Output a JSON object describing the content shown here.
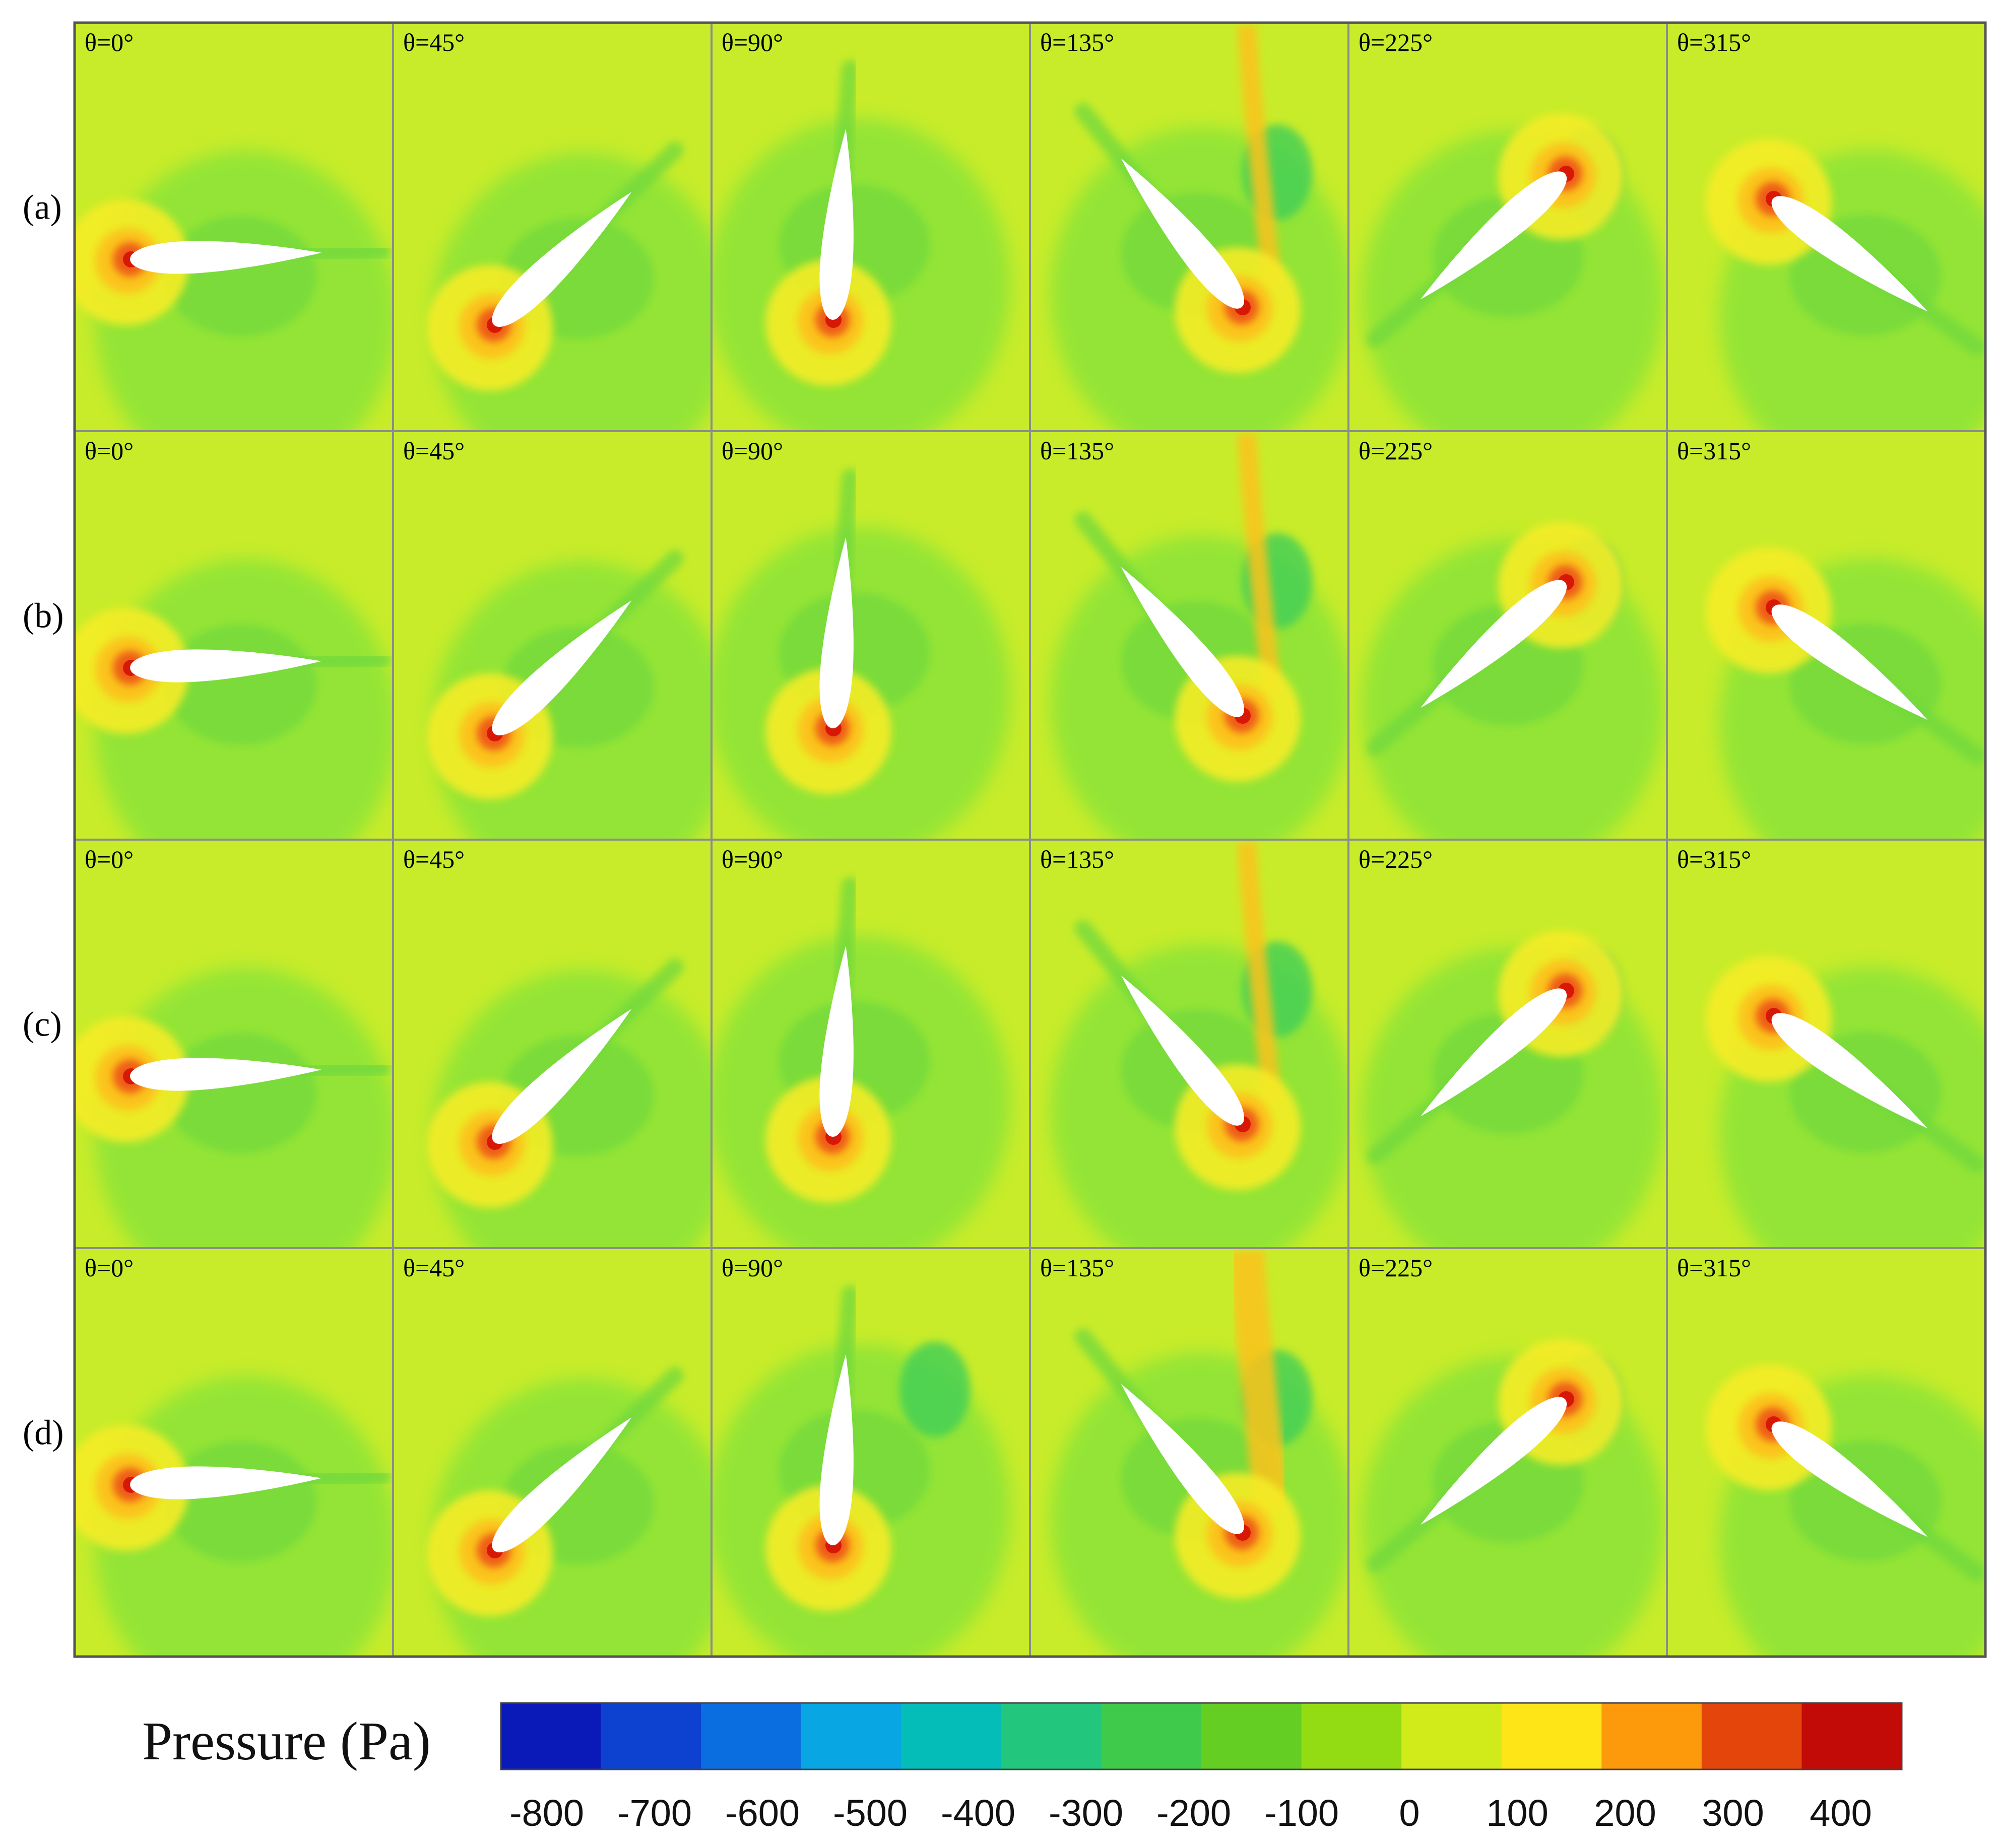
{
  "figure": {
    "rows": [
      {
        "label": "(a)"
      },
      {
        "label": "(b)"
      },
      {
        "label": "(c)"
      },
      {
        "label": "(d)"
      }
    ],
    "angles": [
      {
        "text": "θ=0°",
        "deg": 0
      },
      {
        "text": "θ=45°",
        "deg": 45
      },
      {
        "text": "θ=90°",
        "deg": 90
      },
      {
        "text": "θ=135°",
        "deg": 135
      },
      {
        "text": "θ=225°",
        "deg": 225
      },
      {
        "text": "θ=315°",
        "deg": 315
      }
    ],
    "colors": {
      "background": "#c8ec2a",
      "low_region": "#8ee437",
      "lower_region": "#70d83e",
      "vortex_core": "#3fcf58",
      "high_outer": "#f5ec28",
      "high_mid": "#fcc21e",
      "high_core": "#ee5d14",
      "stagnation": "#d81806",
      "airfoil": "#ffffff",
      "grid_line": "#8c8c8c"
    }
  },
  "legend": {
    "title": "Pressure (Pa)",
    "colors": [
      "#0a1ab8",
      "#0c42cf",
      "#0b6ee0",
      "#08a6e2",
      "#05bdb8",
      "#22c77d",
      "#3fca4c",
      "#64cf22",
      "#93dc14",
      "#d0ea1a",
      "#fde518",
      "#fd9a0c",
      "#e3450b",
      "#c20a06"
    ],
    "ticks": [
      "-800",
      "-700",
      "-600",
      "-500",
      "-400",
      "-300",
      "-200",
      "-100",
      "0",
      "100",
      "200",
      "300",
      "400"
    ]
  }
}
